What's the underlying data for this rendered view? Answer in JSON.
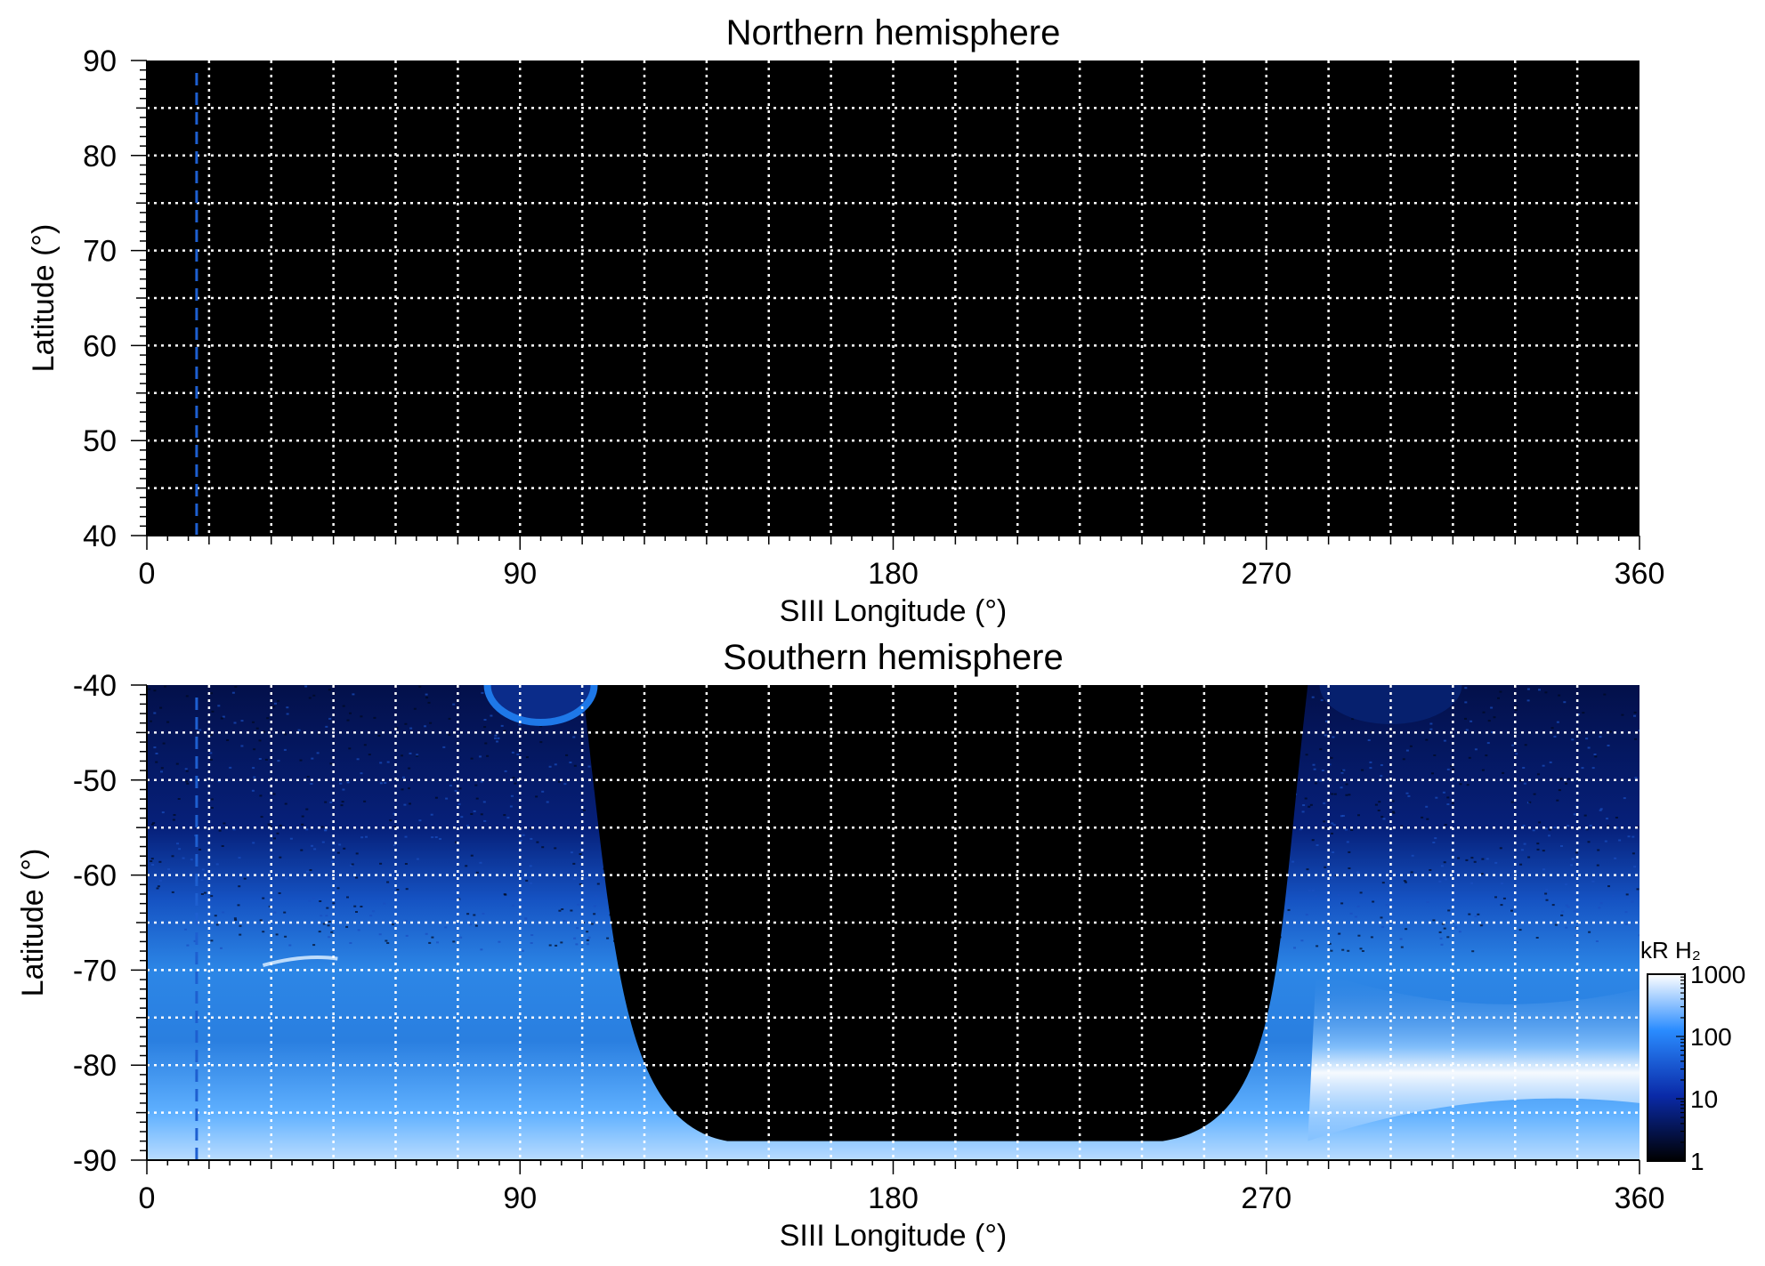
{
  "colors": {
    "plot_background": "#000000",
    "grid": "#ffffff",
    "marker_line": "#1e5fd0",
    "aurora_low": "#0a1a6e",
    "aurora_mid": "#1f78e8",
    "aurora_high": "#ffffff"
  },
  "colorbar": {
    "title": "kR H₂",
    "scale": "log",
    "range": [
      1,
      1000
    ],
    "ticks": [
      "1000",
      "100",
      "10",
      "1"
    ],
    "colors": [
      "#ffffff",
      "#2a8cff",
      "#0a2aa8",
      "#000000"
    ]
  },
  "chart_data": [
    {
      "type": "heatmap",
      "title": "Northern hemisphere",
      "xlabel": "SIII Longitude (°)",
      "ylabel": "Latitude (°)",
      "xlim": [
        0,
        360
      ],
      "ylim": [
        40,
        90
      ],
      "xticks": [
        0,
        90,
        180,
        270,
        360
      ],
      "yticks": [
        90,
        80,
        70,
        60,
        50,
        40
      ],
      "grid": true,
      "grid_x_step": 15,
      "grid_y_step": 5,
      "marker_longitude": 12,
      "description_values": "no emission (all black)"
    },
    {
      "type": "heatmap",
      "title": "Southern hemisphere",
      "xlabel": "SIII Longitude (°)",
      "ylabel": "Latitude (°)",
      "xlim": [
        0,
        360
      ],
      "ylim": [
        -90,
        -40
      ],
      "xticks": [
        0,
        90,
        180,
        270,
        360
      ],
      "yticks": [
        -40,
        -50,
        -60,
        -70,
        -80,
        -90
      ],
      "grid": true,
      "grid_x_step": 15,
      "grid_y_step": 5,
      "marker_longitude": 12,
      "unobserved_region_longitude": [
        105,
        280
      ],
      "auroral_oval_latitude": [
        -65,
        -88
      ],
      "bright_arc": {
        "longitude": [
          280,
          360
        ],
        "latitude": [
          -75,
          -80
        ],
        "intensity_kR": 1000
      }
    }
  ]
}
